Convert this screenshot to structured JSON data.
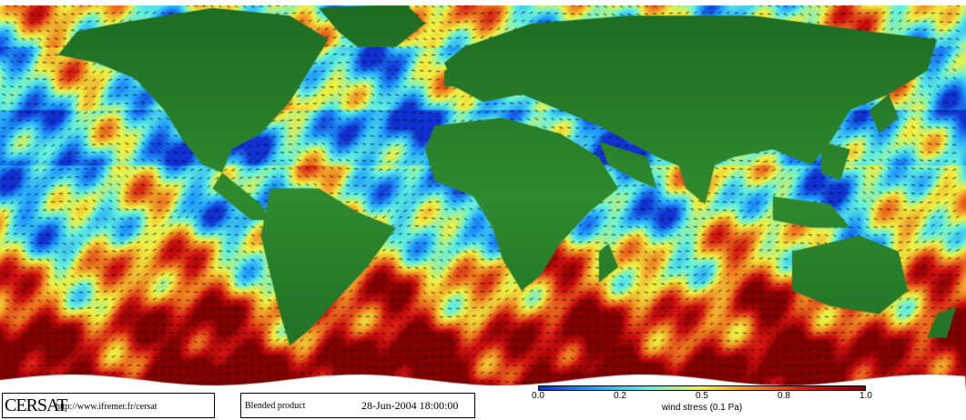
{
  "logo": {
    "text": "CERSAT",
    "url": "http://www.ifremer.fr/cersat"
  },
  "product": {
    "label": "Blended product",
    "datetime": "28-Jun-2004 18:00:00"
  },
  "colorbar": {
    "ticks": [
      "0.0",
      "0.2",
      "0.5",
      "0.8",
      "1.0"
    ],
    "tick_values": [
      0.0,
      0.2,
      0.5,
      0.8,
      1.0
    ],
    "label": "wind stress (0.1 Pa)",
    "colors": [
      "#1030d0",
      "#20a0ff",
      "#60f0e0",
      "#f0f040",
      "#f08020",
      "#d01010",
      "#800000"
    ]
  },
  "colors": {
    "land": "#2f8a2f",
    "land_dark": "#1d6b22",
    "ice": "#ffffff",
    "arrow": "#000000"
  }
}
